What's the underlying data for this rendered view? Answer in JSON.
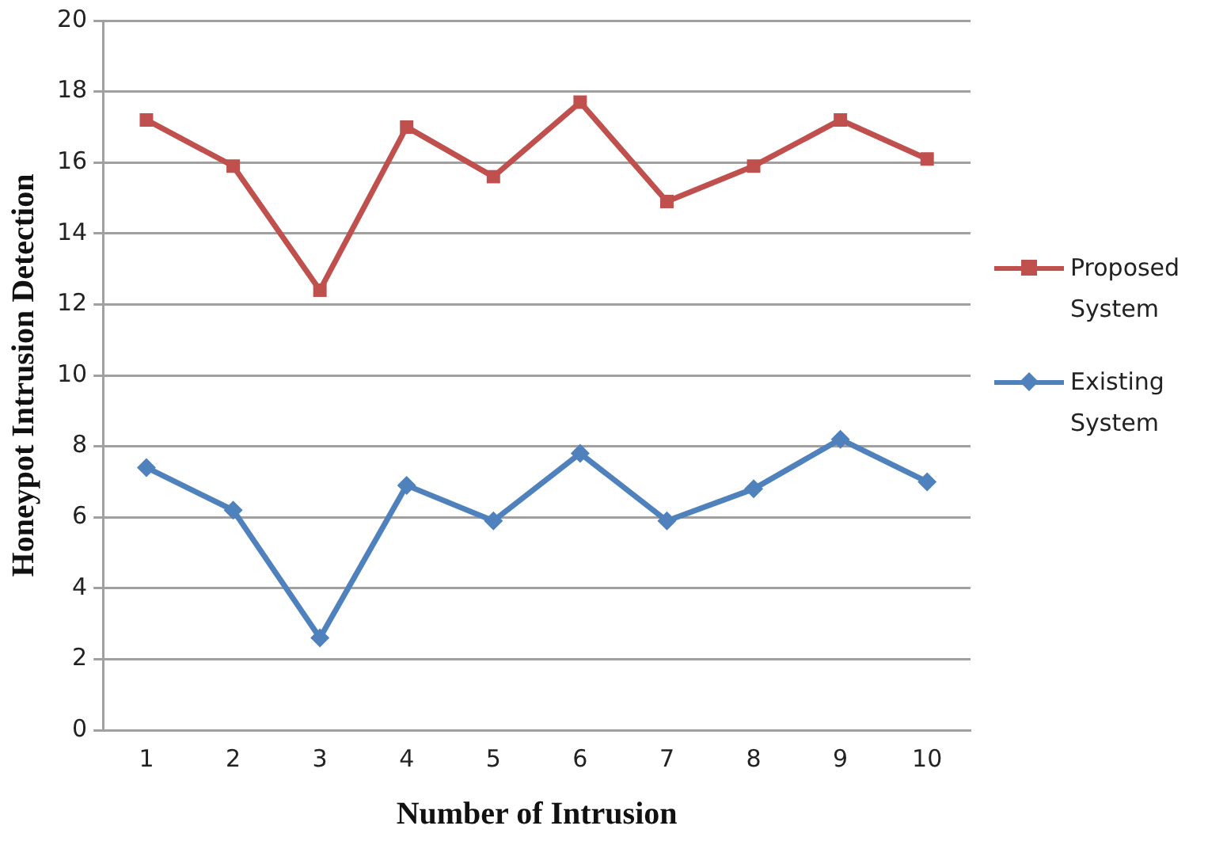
{
  "chart_data": {
    "type": "line",
    "xlabel": "Number of Intrusion",
    "ylabel": "Honeypot Intrusion Detection",
    "categories": [
      "1",
      "2",
      "3",
      "4",
      "5",
      "6",
      "7",
      "8",
      "9",
      "10"
    ],
    "series": [
      {
        "name": "Proposed System",
        "color": "#c0504d",
        "marker": "square",
        "values": [
          17.2,
          15.9,
          12.4,
          17.0,
          15.6,
          17.7,
          14.9,
          15.9,
          17.2,
          16.1
        ]
      },
      {
        "name": "Existing System",
        "color": "#4f81bd",
        "marker": "diamond",
        "values": [
          7.4,
          6.2,
          2.6,
          6.9,
          5.9,
          7.8,
          5.9,
          6.8,
          8.2,
          7.0
        ]
      }
    ],
    "ylim": [
      0,
      20
    ],
    "yticks": [
      0,
      2,
      4,
      6,
      8,
      10,
      12,
      14,
      16,
      18,
      20
    ],
    "grid": "y",
    "legend": "right"
  }
}
